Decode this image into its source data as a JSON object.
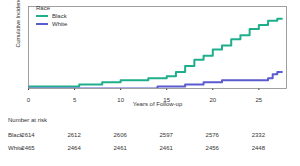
{
  "chart_data": {
    "type": "line",
    "xlabel": "Years of Follow-up",
    "ylabel": "Cumulative Incidence of Stroke",
    "legend_title": "Race",
    "legend": "top-left",
    "tick_labels": "x",
    "x": [
      0,
      5,
      5.5,
      8,
      10,
      12,
      13,
      14,
      15,
      16,
      17,
      18,
      19,
      20,
      21,
      22,
      23,
      24,
      25,
      26,
      26.5,
      27,
      27.5
    ],
    "series": [
      {
        "name": "Black",
        "color": "#1fae8b",
        "values": [
          0.001,
          0.001,
          0.002,
          0.003,
          0.004,
          0.004,
          0.005,
          0.005,
          0.006,
          0.008,
          0.011,
          0.014,
          0.016,
          0.019,
          0.021,
          0.024,
          0.026,
          0.029,
          0.031,
          0.033,
          0.033,
          0.034,
          0.034
        ]
      },
      {
        "name": "White",
        "color": "#5b5bd0",
        "values": [
          0,
          0,
          0,
          0,
          0,
          0,
          0,
          0.001,
          0.001,
          0.001,
          0.002,
          0.002,
          0.003,
          0.003,
          0.004,
          0.004,
          0.004,
          0.004,
          0.004,
          0.005,
          0.007,
          0.008,
          0.008
        ]
      }
    ],
    "xlim": [
      0,
      28
    ],
    "xticks": [
      0,
      5,
      10,
      15,
      20,
      25
    ],
    "ylim": [
      0,
      0.04
    ],
    "risk_table": {
      "title": "Number at risk",
      "rows": [
        {
          "name": "Black",
          "values": [
            2614,
            2612,
            2606,
            2597,
            2576,
            2332
          ]
        },
        {
          "name": "White",
          "values": [
            2465,
            2464,
            2461,
            2461,
            2456,
            2448
          ]
        }
      ]
    }
  }
}
